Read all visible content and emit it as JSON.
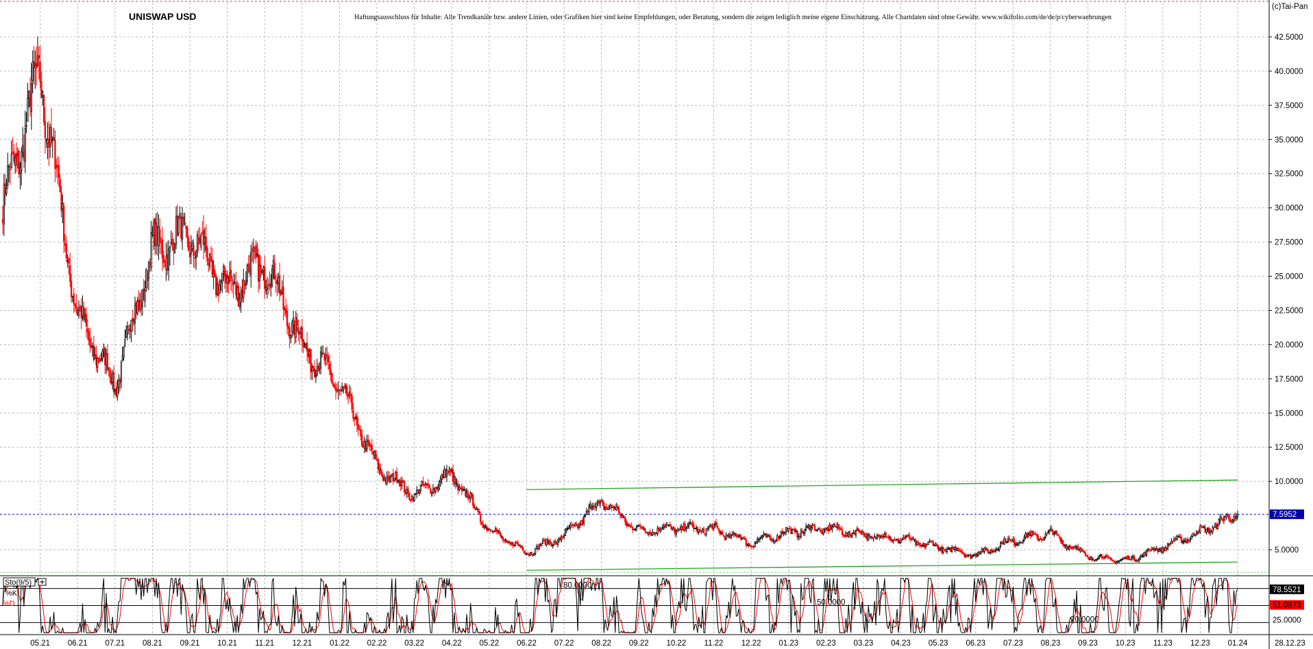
{
  "chart_data": [
    {
      "type": "candlestick",
      "title": "UNISWAP USD",
      "disclaimer": "Haftungsausschluss für Inhalte: Alle Trendkanäle bzw. andere Linien, oder Grafiken hier sind keine Empfehlungen, oder Beratung, sondern die zeigen lediglich meine eigene Einschätzung. Alle Chartdaten sind ohne Gewähr. www.wikifolio.com/de/de/p/cyberwaehrungen",
      "copyright": "(c)Tai-Pan",
      "ylim": [
        3.3,
        45.0
      ],
      "y_ticks": [
        "42.5000",
        "40.0000",
        "37.5000",
        "35.0000",
        "32.5000",
        "30.0000",
        "27.5000",
        "25.0000",
        "22.5000",
        "20.0000",
        "17.5000",
        "15.0000",
        "12.5000",
        "10.0000",
        "5.0000"
      ],
      "x_labels": [
        "05.21",
        "06.21",
        "07.21",
        "08.21",
        "09.21",
        "10.21",
        "11.21",
        "12.21",
        "01.22",
        "02.22",
        "03.22",
        "04.22",
        "05.22",
        "06.22",
        "07.22",
        "08.22",
        "09.22",
        "10.22",
        "11.22",
        "12.22",
        "01.23",
        "02.23",
        "03.23",
        "04.23",
        "05.23",
        "06.23",
        "07.23",
        "08.23",
        "09.23",
        "10.23",
        "11.23",
        "12.23",
        "01.24"
      ],
      "last_price": 7.5952,
      "last_price_label": "7.5952",
      "last_date_label": "28.12.23",
      "colors": {
        "up": "#000000",
        "down": "#ff0000",
        "trendline": "#22a222",
        "price_line": "#0000ee"
      },
      "monthly_anchors": [
        {
          "month": "04.21",
          "price": 30.0
        },
        {
          "month": "05.21",
          "price": 40.0
        },
        {
          "month": "06.21",
          "price": 22.0
        },
        {
          "month": "07.21",
          "price": 17.0
        },
        {
          "month": "08.21",
          "price": 27.0
        },
        {
          "month": "09.21",
          "price": 28.0
        },
        {
          "month": "10.21",
          "price": 24.0
        },
        {
          "month": "11.21",
          "price": 26.0
        },
        {
          "month": "12.21",
          "price": 20.0
        },
        {
          "month": "01.22",
          "price": 17.0
        },
        {
          "month": "02.22",
          "price": 11.0
        },
        {
          "month": "03.22",
          "price": 9.0
        },
        {
          "month": "04.22",
          "price": 10.5
        },
        {
          "month": "05.22",
          "price": 6.5
        },
        {
          "month": "06.22",
          "price": 4.8
        },
        {
          "month": "07.22",
          "price": 6.0
        },
        {
          "month": "08.22",
          "price": 8.6
        },
        {
          "month": "09.22",
          "price": 6.4
        },
        {
          "month": "10.22",
          "price": 6.6
        },
        {
          "month": "11.22",
          "price": 6.5
        },
        {
          "month": "12.22",
          "price": 5.5
        },
        {
          "month": "01.23",
          "price": 6.3
        },
        {
          "month": "02.23",
          "price": 6.6
        },
        {
          "month": "03.23",
          "price": 6.1
        },
        {
          "month": "04.23",
          "price": 5.8
        },
        {
          "month": "05.23",
          "price": 5.2
        },
        {
          "month": "06.23",
          "price": 4.6
        },
        {
          "month": "07.23",
          "price": 5.7
        },
        {
          "month": "08.23",
          "price": 6.2
        },
        {
          "month": "09.23",
          "price": 4.5
        },
        {
          "month": "10.23",
          "price": 4.2
        },
        {
          "month": "11.23",
          "price": 5.2
        },
        {
          "month": "12.23",
          "price": 6.3
        },
        {
          "month": "end",
          "price": 7.6
        }
      ],
      "trendlines": [
        {
          "from": [
            "06.22",
            9.4
          ],
          "to": [
            "01.24",
            10.1
          ]
        },
        {
          "from": [
            "06.22",
            3.5
          ],
          "to": [
            "01.24",
            4.1
          ]
        }
      ]
    },
    {
      "type": "line",
      "indicator_label": "Sto(9/5)",
      "series": [
        {
          "name": "%K",
          "color": "#000000"
        },
        {
          "name": "%D",
          "color": "#ff0000"
        }
      ],
      "ylim": [
        0,
        100
      ],
      "levels": [
        {
          "value": 80,
          "label": "80.0000"
        },
        {
          "value": 50,
          "label": "50.0000"
        },
        {
          "value": 20,
          "label": "20.0000"
        }
      ],
      "right_labels": [
        "78.5521",
        "51.0873",
        "25.0000"
      ],
      "last_values": {
        "k": 78.5521,
        "d": 51.0873
      }
    }
  ]
}
